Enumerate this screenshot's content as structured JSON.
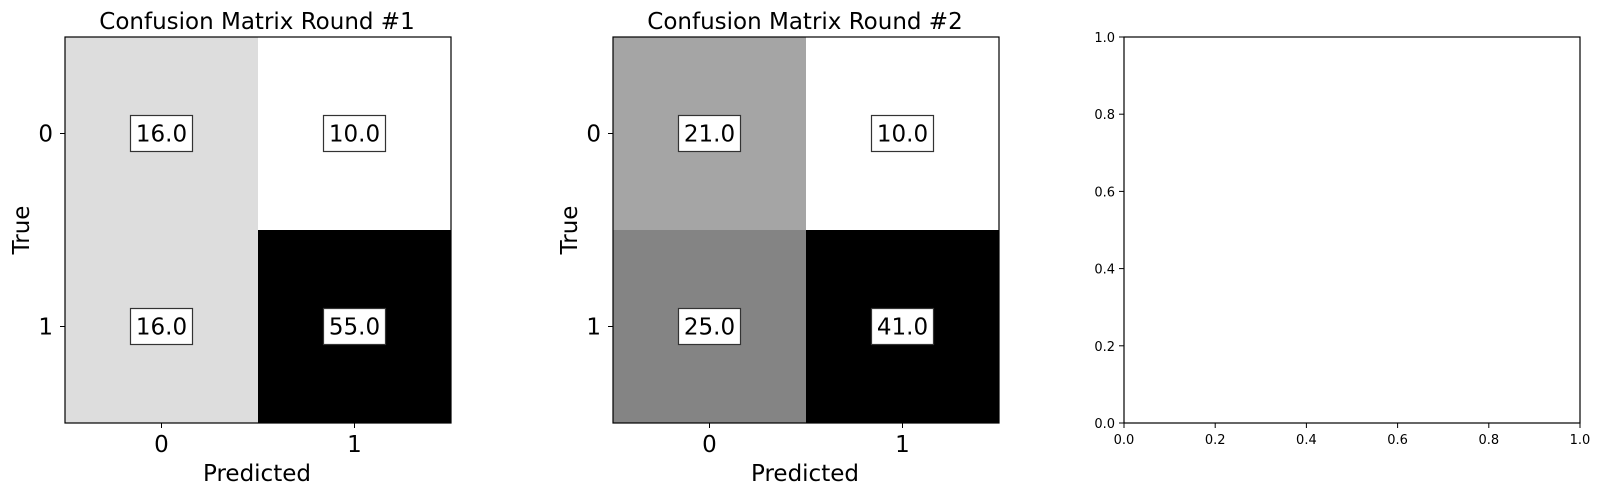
{
  "chart_data": [
    {
      "type": "heatmap",
      "title": "Confusion Matrix Round #1",
      "xlabel": "Predicted",
      "ylabel": "True",
      "x_ticks": [
        "0",
        "1"
      ],
      "y_ticks": [
        "0",
        "1"
      ],
      "values": [
        [
          16.0,
          10.0
        ],
        [
          16.0,
          55.0
        ]
      ],
      "cell_labels": [
        [
          "16.0",
          "10.0"
        ],
        [
          "16.0",
          "55.0"
        ]
      ],
      "colormap": "greys",
      "grid": false
    },
    {
      "type": "heatmap",
      "title": "Confusion Matrix Round #2",
      "xlabel": "Predicted",
      "ylabel": "True",
      "x_ticks": [
        "0",
        "1"
      ],
      "y_ticks": [
        "0",
        "1"
      ],
      "values": [
        [
          21.0,
          10.0
        ],
        [
          25.0,
          41.0
        ]
      ],
      "cell_labels": [
        [
          "21.0",
          "10.0"
        ],
        [
          "25.0",
          "41.0"
        ]
      ],
      "colormap": "greys",
      "grid": false
    },
    {
      "type": "scatter",
      "title": "",
      "xlabel": "",
      "ylabel": "",
      "xlim": [
        0,
        1
      ],
      "ylim": [
        0,
        1
      ],
      "x_ticks": [
        "0.0",
        "0.2",
        "0.4",
        "0.6",
        "0.8",
        "1.0"
      ],
      "y_ticks": [
        "0.0",
        "0.2",
        "0.4",
        "0.6",
        "0.8",
        "1.0"
      ],
      "series": [],
      "grid": false
    }
  ]
}
